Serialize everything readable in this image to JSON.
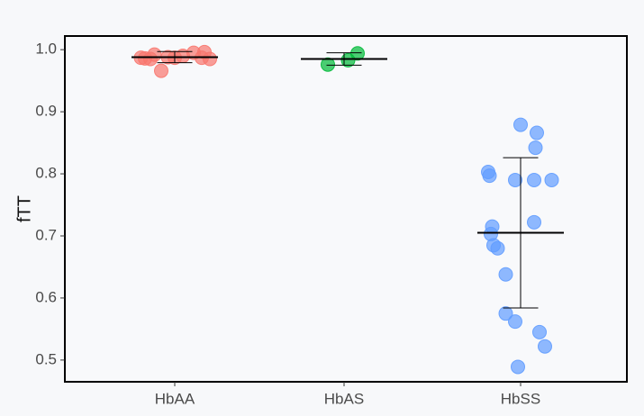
{
  "chart_data": {
    "type": "scatter",
    "subtype": "jitter-strip with mean and error bars",
    "ylabel": "fTT",
    "xlabel": "",
    "title": "",
    "ylim": [
      0.465,
      1.022
    ],
    "categories": [
      "HbAA",
      "HbAS",
      "HbSS"
    ],
    "y_ticks": [
      "0.5",
      "0.6",
      "0.7",
      "0.8",
      "0.9",
      "1.0"
    ],
    "y_tick_values": [
      0.5,
      0.6,
      0.7,
      0.8,
      0.9,
      1.0
    ],
    "legend": "none",
    "grid": false,
    "series": [
      {
        "category": "HbAA",
        "color": "#f8766d",
        "points": [
          {
            "x": -0.25,
            "y": 0.987
          },
          {
            "x": -0.22,
            "y": 0.986
          },
          {
            "x": -0.18,
            "y": 0.985
          },
          {
            "x": -0.15,
            "y": 0.992
          },
          {
            "x": -0.1,
            "y": 0.966
          },
          {
            "x": -0.05,
            "y": 0.988
          },
          {
            "x": 0.0,
            "y": 0.987
          },
          {
            "x": 0.06,
            "y": 0.99
          },
          {
            "x": 0.14,
            "y": 0.995
          },
          {
            "x": 0.2,
            "y": 0.987
          },
          {
            "x": 0.22,
            "y": 0.996
          },
          {
            "x": 0.26,
            "y": 0.985
          }
        ],
        "mean": 0.988,
        "err_low": 0.979,
        "err_high": 0.997
      },
      {
        "category": "HbAS",
        "color": "#00ba38",
        "points": [
          {
            "x": -0.12,
            "y": 0.976
          },
          {
            "x": 0.03,
            "y": 0.983
          },
          {
            "x": 0.1,
            "y": 0.994
          }
        ],
        "mean": 0.985,
        "err_low": 0.975,
        "err_high": 0.995
      },
      {
        "category": "HbSS",
        "color": "#619cff",
        "points": [
          {
            "x": -0.24,
            "y": 0.803
          },
          {
            "x": -0.23,
            "y": 0.797
          },
          {
            "x": -0.22,
            "y": 0.703
          },
          {
            "x": -0.21,
            "y": 0.715
          },
          {
            "x": -0.2,
            "y": 0.685
          },
          {
            "x": -0.17,
            "y": 0.68
          },
          {
            "x": -0.11,
            "y": 0.638
          },
          {
            "x": -0.11,
            "y": 0.575
          },
          {
            "x": -0.04,
            "y": 0.562
          },
          {
            "x": -0.04,
            "y": 0.79
          },
          {
            "x": -0.02,
            "y": 0.489
          },
          {
            "x": 0.0,
            "y": 0.879
          },
          {
            "x": 0.1,
            "y": 0.722
          },
          {
            "x": 0.1,
            "y": 0.79
          },
          {
            "x": 0.11,
            "y": 0.842
          },
          {
            "x": 0.12,
            "y": 0.866
          },
          {
            "x": 0.14,
            "y": 0.545
          },
          {
            "x": 0.18,
            "y": 0.522
          },
          {
            "x": 0.23,
            "y": 0.79
          }
        ],
        "mean": 0.705,
        "err_low": 0.584,
        "err_high": 0.826
      }
    ]
  }
}
